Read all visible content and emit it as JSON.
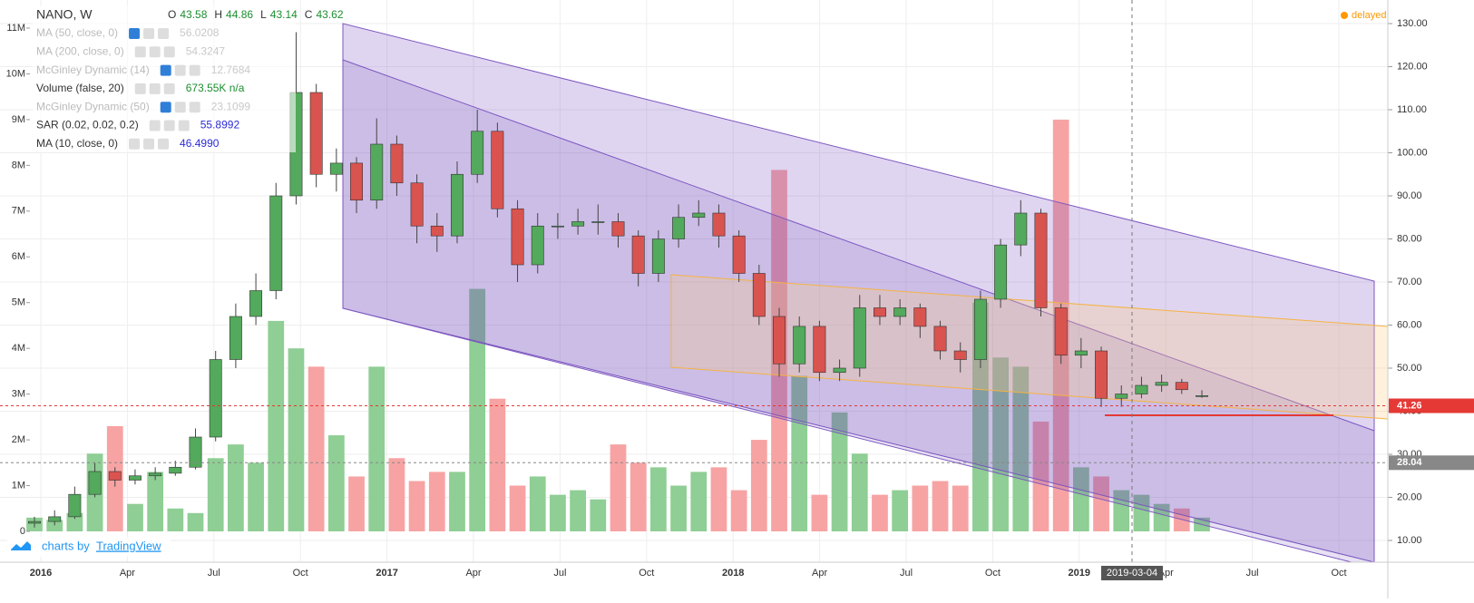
{
  "chart_data": {
    "type": "candlestick",
    "title": "NANO, W",
    "ohlc": [
      {
        "label": "O",
        "value": "43.58"
      },
      {
        "label": "H",
        "value": "44.86"
      },
      {
        "label": "L",
        "value": "43.14"
      },
      {
        "label": "C",
        "value": "43.62"
      }
    ],
    "indicators": [
      {
        "name": "MA (50, close, 0)",
        "value": "56.0208",
        "color": "#c9c9c9"
      },
      {
        "name": "MA (200, close, 0)",
        "value": "54.3247",
        "color": "#c9c9c9"
      },
      {
        "name": "McGinley Dynamic (14)",
        "value": "12.7684",
        "color": "#c9c9c9"
      },
      {
        "name": "Volume (false, 20)",
        "value": "673.55K n/a",
        "color": "#1b8f2f"
      },
      {
        "name": "McGinley Dynamic (50)",
        "value": "23.1099",
        "color": "#c9c9c9"
      },
      {
        "name": "SAR (0.02, 0.02, 0.2)",
        "value": "55.8992",
        "color": "#2b2bd9"
      },
      {
        "name": "MA (10, close, 0)",
        "value": "46.4990",
        "color": "#2b2bd9"
      }
    ],
    "status": "delayed",
    "branding": [
      "charts by",
      "TradingView"
    ],
    "up_color": "#53a95c",
    "down_color": "#d9534f",
    "up_volume_color": "#8fce94",
    "down_volume_color": "#f7a3a3",
    "open": [
      14,
      14.4,
      15.5,
      20.7,
      26,
      24,
      25,
      25.6,
      27,
      34,
      52,
      62,
      68,
      90,
      114,
      95,
      97.6,
      89,
      102,
      93,
      83,
      80.7,
      95,
      105,
      87,
      74,
      83,
      83,
      84,
      84,
      80.7,
      72,
      80,
      85,
      86,
      80.7,
      72,
      62,
      51,
      59.7,
      49,
      50,
      64,
      62,
      64,
      59.7,
      54,
      52,
      66,
      78.6,
      86,
      64,
      53,
      54,
      43,
      44,
      46,
      46.7,
      43.58
    ],
    "high": [
      15.5,
      17,
      22.5,
      28,
      27,
      26.5,
      27,
      28.5,
      36,
      54,
      65,
      72,
      93,
      128,
      116,
      101,
      99,
      108,
      104,
      95,
      86,
      98,
      110,
      107,
      89,
      86,
      86,
      87,
      88,
      86,
      82,
      82,
      88,
      89,
      88,
      82,
      74,
      64,
      62,
      61,
      52,
      67,
      67,
      66,
      65,
      61,
      56,
      68,
      80,
      89,
      87,
      65,
      57,
      55,
      46,
      48,
      48.5,
      47.5,
      44.86
    ],
    "low": [
      13,
      13.5,
      15,
      20,
      22.5,
      23,
      24,
      25,
      26.5,
      33,
      50,
      60,
      66,
      88,
      92,
      91,
      86,
      87,
      90,
      79,
      77,
      79,
      93,
      85,
      70,
      72,
      80,
      81,
      81,
      78,
      69,
      70,
      78,
      83,
      78,
      70,
      60,
      48,
      49,
      47,
      47,
      48,
      60,
      60,
      57,
      52,
      49,
      50,
      64,
      76,
      62,
      51,
      50,
      41,
      41,
      43,
      44.5,
      44,
      43.14
    ],
    "close": [
      14.4,
      15.5,
      20.7,
      26,
      24,
      25,
      25.6,
      27,
      34,
      52,
      62,
      68,
      90,
      114,
      95,
      97.6,
      89,
      102,
      93,
      83,
      80.7,
      95,
      105,
      87,
      74,
      83,
      83,
      84,
      84,
      80.7,
      72,
      80,
      85,
      86,
      80.7,
      72,
      62,
      51,
      59.7,
      49,
      50,
      64,
      62,
      64,
      59.7,
      54,
      52,
      66,
      78.6,
      86,
      64,
      53,
      54,
      43,
      44,
      46,
      46.7,
      45,
      43.62
    ],
    "volume": [
      300000,
      250000,
      400000,
      1700000,
      2300000,
      600000,
      1300000,
      500000,
      400000,
      1600000,
      1900000,
      1500000,
      4600000,
      4000000,
      3600000,
      2100000,
      1200000,
      3600000,
      1600000,
      1100000,
      1300000,
      1300000,
      5300000,
      2900000,
      1000000,
      1200000,
      800000,
      900000,
      700000,
      1900000,
      1500000,
      1400000,
      1000000,
      1300000,
      1400000,
      900000,
      2000000,
      7900000,
      3400000,
      800000,
      2600000,
      1700000,
      800000,
      900000,
      1000000,
      1100000,
      1000000,
      5000000,
      3800000,
      3600000,
      2400000,
      9000000,
      1400000,
      1200000,
      900000,
      800000,
      600000,
      500000,
      300000
    ],
    "ylim": [
      10,
      130
    ],
    "yticks": [
      {
        "value": 10,
        "label": "10.00"
      },
      {
        "value": 20,
        "label": "20.00"
      },
      {
        "value": 30,
        "label": "30.00"
      },
      {
        "value": 40,
        "label": "40.00"
      },
      {
        "value": 50,
        "label": "50.00"
      },
      {
        "value": 60,
        "label": "60.00"
      },
      {
        "value": 70,
        "label": "70.00"
      },
      {
        "value": 80,
        "label": "80.00"
      },
      {
        "value": 90,
        "label": "90.00"
      },
      {
        "value": 100,
        "label": "100.00"
      },
      {
        "value": 110,
        "label": "110.00"
      },
      {
        "value": 120,
        "label": "120.00"
      },
      {
        "value": 130,
        "label": "130.00"
      }
    ],
    "y2lim": [
      0,
      11000000
    ],
    "y2ticks": [
      0,
      {
        "value": 1000000,
        "label": "1M"
      },
      {
        "value": 2000000,
        "label": "2M"
      },
      {
        "value": 3000000,
        "label": "3M"
      },
      {
        "value": 4000000,
        "label": "4M"
      },
      {
        "value": 5000000,
        "label": "5M"
      },
      {
        "value": 6000000,
        "label": "6M"
      },
      {
        "value": 7000000,
        "label": "7M"
      },
      {
        "value": 8000000,
        "label": "8M"
      },
      {
        "value": 9000000,
        "label": "9M"
      },
      {
        "value": 10000000,
        "label": "10M"
      },
      {
        "value": 11000000,
        "label": "11M"
      }
    ],
    "xlabels": [
      "2016",
      "Apr",
      "Jul",
      "Oct",
      "2017",
      "Apr",
      "Jul",
      "Oct",
      "2018",
      "Apr",
      "Jul",
      "Oct",
      "2019",
      "Apr",
      "Jul",
      "Oct"
    ],
    "price_lines": [
      {
        "value": 41.26,
        "label": "41.26",
        "color": "#e53935"
      },
      {
        "value": 28.04,
        "label": "28.04",
        "color": "#888888"
      }
    ],
    "crosshair_label": "2019-03-04",
    "grid": true
  }
}
